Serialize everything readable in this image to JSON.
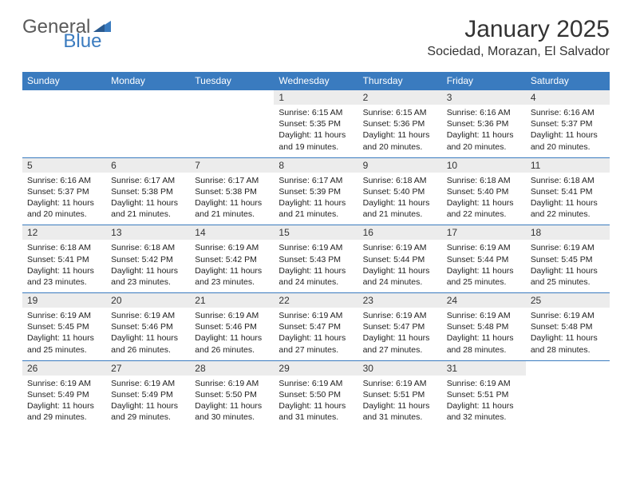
{
  "logo": {
    "text_general": "General",
    "text_blue": "Blue"
  },
  "header": {
    "month_title": "January 2025",
    "location": "Sociedad, Morazan, El Salvador"
  },
  "colors": {
    "header_bg": "#3a7bbf",
    "header_text": "#ffffff",
    "daynum_bg": "#ececec",
    "border": "#3a7bbf",
    "body_text": "#222222",
    "logo_gray": "#5a5a5a",
    "logo_blue": "#3a7bbf"
  },
  "typography": {
    "month_title_fontsize": 30,
    "location_fontsize": 16,
    "weekday_fontsize": 12,
    "daynum_fontsize": 12,
    "cell_fontsize": 10.5
  },
  "weekdays": [
    "Sunday",
    "Monday",
    "Tuesday",
    "Wednesday",
    "Thursday",
    "Friday",
    "Saturday"
  ],
  "weeks": [
    {
      "nums": [
        "",
        "",
        "",
        "1",
        "2",
        "3",
        "4"
      ],
      "data": [
        null,
        null,
        null,
        {
          "sunrise": "Sunrise: 6:15 AM",
          "sunset": "Sunset: 5:35 PM",
          "daylight": "Daylight: 11 hours and 19 minutes."
        },
        {
          "sunrise": "Sunrise: 6:15 AM",
          "sunset": "Sunset: 5:36 PM",
          "daylight": "Daylight: 11 hours and 20 minutes."
        },
        {
          "sunrise": "Sunrise: 6:16 AM",
          "sunset": "Sunset: 5:36 PM",
          "daylight": "Daylight: 11 hours and 20 minutes."
        },
        {
          "sunrise": "Sunrise: 6:16 AM",
          "sunset": "Sunset: 5:37 PM",
          "daylight": "Daylight: 11 hours and 20 minutes."
        }
      ]
    },
    {
      "nums": [
        "5",
        "6",
        "7",
        "8",
        "9",
        "10",
        "11"
      ],
      "data": [
        {
          "sunrise": "Sunrise: 6:16 AM",
          "sunset": "Sunset: 5:37 PM",
          "daylight": "Daylight: 11 hours and 20 minutes."
        },
        {
          "sunrise": "Sunrise: 6:17 AM",
          "sunset": "Sunset: 5:38 PM",
          "daylight": "Daylight: 11 hours and 21 minutes."
        },
        {
          "sunrise": "Sunrise: 6:17 AM",
          "sunset": "Sunset: 5:38 PM",
          "daylight": "Daylight: 11 hours and 21 minutes."
        },
        {
          "sunrise": "Sunrise: 6:17 AM",
          "sunset": "Sunset: 5:39 PM",
          "daylight": "Daylight: 11 hours and 21 minutes."
        },
        {
          "sunrise": "Sunrise: 6:18 AM",
          "sunset": "Sunset: 5:40 PM",
          "daylight": "Daylight: 11 hours and 21 minutes."
        },
        {
          "sunrise": "Sunrise: 6:18 AM",
          "sunset": "Sunset: 5:40 PM",
          "daylight": "Daylight: 11 hours and 22 minutes."
        },
        {
          "sunrise": "Sunrise: 6:18 AM",
          "sunset": "Sunset: 5:41 PM",
          "daylight": "Daylight: 11 hours and 22 minutes."
        }
      ]
    },
    {
      "nums": [
        "12",
        "13",
        "14",
        "15",
        "16",
        "17",
        "18"
      ],
      "data": [
        {
          "sunrise": "Sunrise: 6:18 AM",
          "sunset": "Sunset: 5:41 PM",
          "daylight": "Daylight: 11 hours and 23 minutes."
        },
        {
          "sunrise": "Sunrise: 6:18 AM",
          "sunset": "Sunset: 5:42 PM",
          "daylight": "Daylight: 11 hours and 23 minutes."
        },
        {
          "sunrise": "Sunrise: 6:19 AM",
          "sunset": "Sunset: 5:42 PM",
          "daylight": "Daylight: 11 hours and 23 minutes."
        },
        {
          "sunrise": "Sunrise: 6:19 AM",
          "sunset": "Sunset: 5:43 PM",
          "daylight": "Daylight: 11 hours and 24 minutes."
        },
        {
          "sunrise": "Sunrise: 6:19 AM",
          "sunset": "Sunset: 5:44 PM",
          "daylight": "Daylight: 11 hours and 24 minutes."
        },
        {
          "sunrise": "Sunrise: 6:19 AM",
          "sunset": "Sunset: 5:44 PM",
          "daylight": "Daylight: 11 hours and 25 minutes."
        },
        {
          "sunrise": "Sunrise: 6:19 AM",
          "sunset": "Sunset: 5:45 PM",
          "daylight": "Daylight: 11 hours and 25 minutes."
        }
      ]
    },
    {
      "nums": [
        "19",
        "20",
        "21",
        "22",
        "23",
        "24",
        "25"
      ],
      "data": [
        {
          "sunrise": "Sunrise: 6:19 AM",
          "sunset": "Sunset: 5:45 PM",
          "daylight": "Daylight: 11 hours and 25 minutes."
        },
        {
          "sunrise": "Sunrise: 6:19 AM",
          "sunset": "Sunset: 5:46 PM",
          "daylight": "Daylight: 11 hours and 26 minutes."
        },
        {
          "sunrise": "Sunrise: 6:19 AM",
          "sunset": "Sunset: 5:46 PM",
          "daylight": "Daylight: 11 hours and 26 minutes."
        },
        {
          "sunrise": "Sunrise: 6:19 AM",
          "sunset": "Sunset: 5:47 PM",
          "daylight": "Daylight: 11 hours and 27 minutes."
        },
        {
          "sunrise": "Sunrise: 6:19 AM",
          "sunset": "Sunset: 5:47 PM",
          "daylight": "Daylight: 11 hours and 27 minutes."
        },
        {
          "sunrise": "Sunrise: 6:19 AM",
          "sunset": "Sunset: 5:48 PM",
          "daylight": "Daylight: 11 hours and 28 minutes."
        },
        {
          "sunrise": "Sunrise: 6:19 AM",
          "sunset": "Sunset: 5:48 PM",
          "daylight": "Daylight: 11 hours and 28 minutes."
        }
      ]
    },
    {
      "nums": [
        "26",
        "27",
        "28",
        "29",
        "30",
        "31",
        ""
      ],
      "data": [
        {
          "sunrise": "Sunrise: 6:19 AM",
          "sunset": "Sunset: 5:49 PM",
          "daylight": "Daylight: 11 hours and 29 minutes."
        },
        {
          "sunrise": "Sunrise: 6:19 AM",
          "sunset": "Sunset: 5:49 PM",
          "daylight": "Daylight: 11 hours and 29 minutes."
        },
        {
          "sunrise": "Sunrise: 6:19 AM",
          "sunset": "Sunset: 5:50 PM",
          "daylight": "Daylight: 11 hours and 30 minutes."
        },
        {
          "sunrise": "Sunrise: 6:19 AM",
          "sunset": "Sunset: 5:50 PM",
          "daylight": "Daylight: 11 hours and 31 minutes."
        },
        {
          "sunrise": "Sunrise: 6:19 AM",
          "sunset": "Sunset: 5:51 PM",
          "daylight": "Daylight: 11 hours and 31 minutes."
        },
        {
          "sunrise": "Sunrise: 6:19 AM",
          "sunset": "Sunset: 5:51 PM",
          "daylight": "Daylight: 11 hours and 32 minutes."
        },
        null
      ]
    }
  ]
}
